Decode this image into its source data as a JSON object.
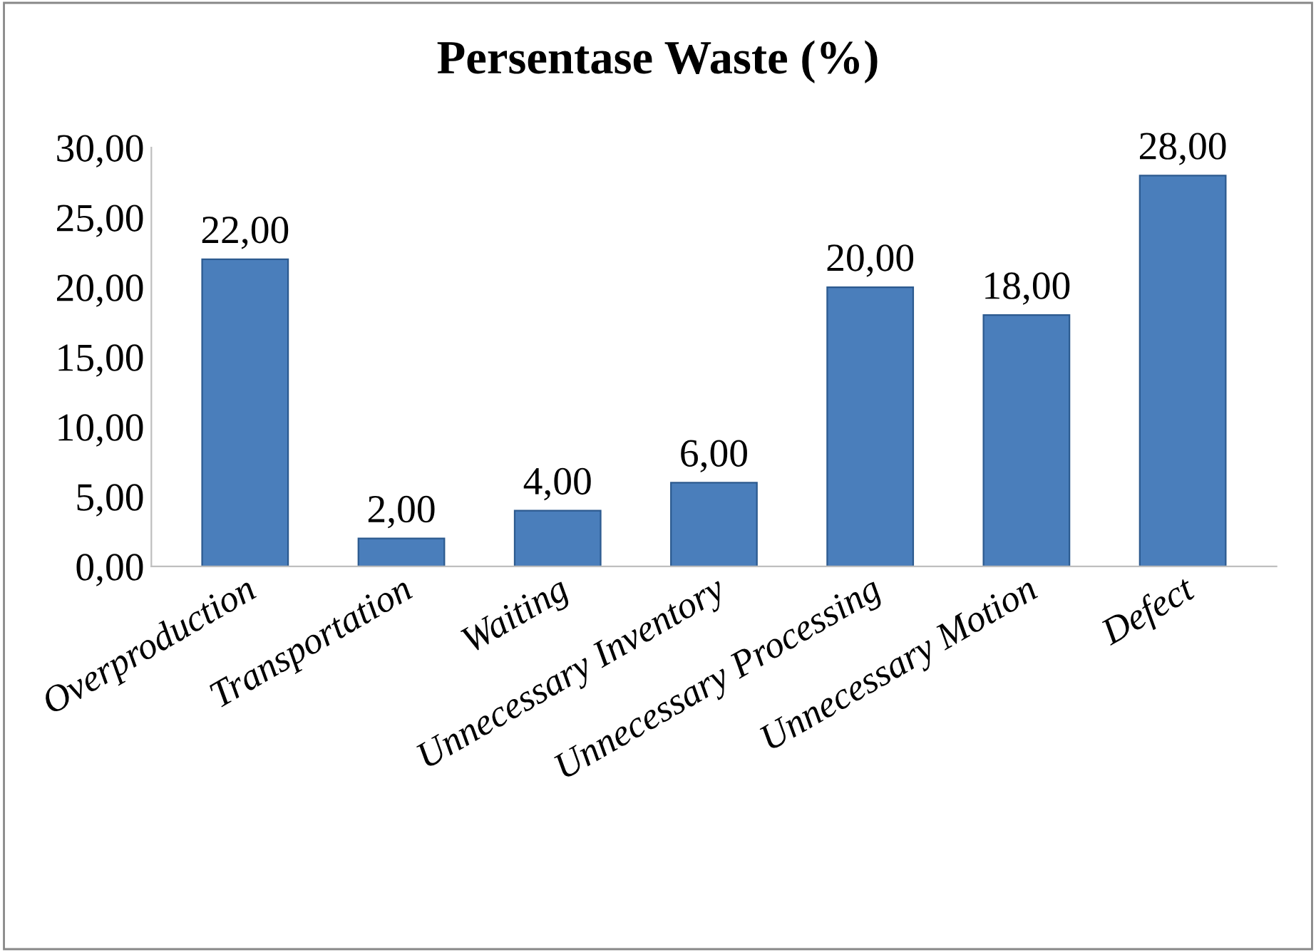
{
  "chart_data": {
    "type": "bar",
    "title": "Persentase Waste (%)",
    "categories": [
      "Overproduction",
      "Transportation",
      "Waiting",
      "Unnecessary Inventory",
      "Unnecessary Processing",
      "Unnecessary Motion",
      "Defect"
    ],
    "values": [
      22,
      2,
      4,
      6,
      20,
      18,
      28
    ],
    "value_labels": [
      "22,00",
      "2,00",
      "4,00",
      "6,00",
      "20,00",
      "18,00",
      "28,00"
    ],
    "color": "#4a7ebb",
    "ylim": [
      0,
      30
    ],
    "yticks": [
      {
        "value": 0,
        "label": "0,00"
      },
      {
        "value": 5,
        "label": "5,00"
      },
      {
        "value": 10,
        "label": "10,00"
      },
      {
        "value": 15,
        "label": "15,00"
      },
      {
        "value": 20,
        "label": "20,00"
      },
      {
        "value": 25,
        "label": "25,00"
      },
      {
        "value": 30,
        "label": "30,00"
      }
    ],
    "grid": false,
    "legend": false
  }
}
